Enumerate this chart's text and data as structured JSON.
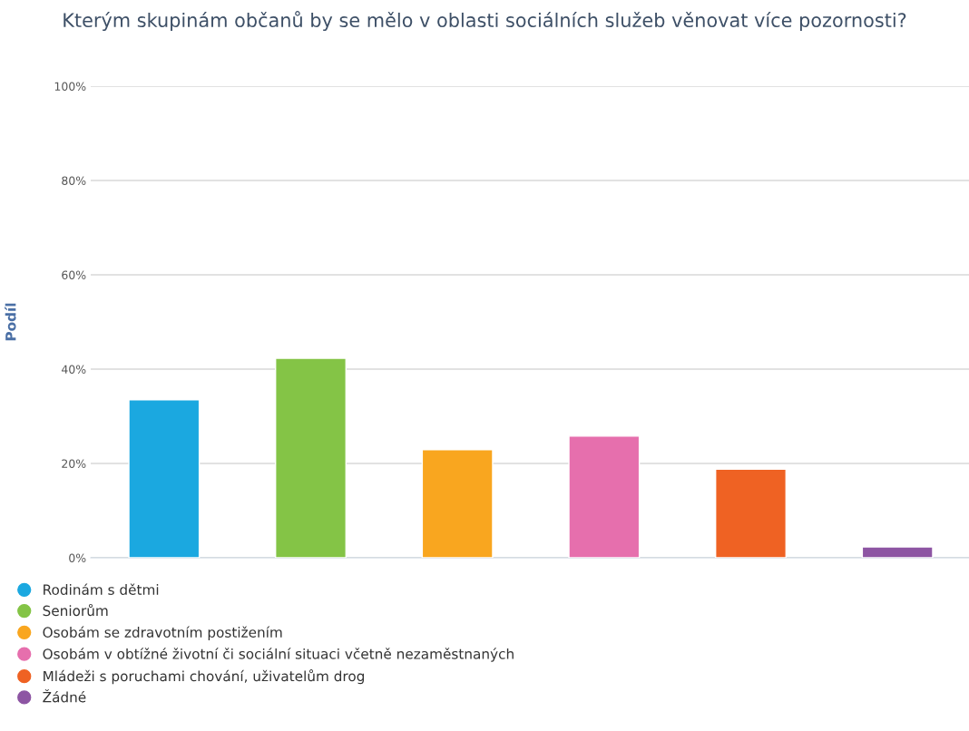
{
  "chart_data": {
    "type": "bar",
    "title": "Kterým skupinám občanů by se mělo v oblasti sociálních služeb věnovat více pozornosti?",
    "ylabel": "Podíl",
    "categories": [
      null,
      null,
      null,
      null,
      null,
      null
    ],
    "series": [
      {
        "name": "Rodinám s dětmi",
        "color": "#1ba8e0",
        "values": [
          33.5,
          null,
          null,
          null,
          null,
          null
        ]
      },
      {
        "name": "Seniorům",
        "color": "#84c446",
        "values": [
          null,
          42.3,
          null,
          null,
          null,
          null
        ]
      },
      {
        "name": "Osobám se zdravotním postižením",
        "color": "#f9a61f",
        "values": [
          null,
          null,
          22.9,
          null,
          null,
          null
        ]
      },
      {
        "name": "Osobám v obtížné životní či sociální situaci včetně nezaměstnaných",
        "color": "#e66fad",
        "values": [
          null,
          null,
          null,
          25.8,
          null,
          null
        ]
      },
      {
        "name": "Mládeži s poruchami chování, uživatelům drog",
        "color": "#ef6223",
        "values": [
          null,
          null,
          null,
          null,
          18.8,
          null
        ]
      },
      {
        "name": "Žádné",
        "color": "#8d55a3",
        "values": [
          null,
          null,
          null,
          null,
          null,
          2.3
        ]
      }
    ],
    "ylim": [
      0,
      100
    ],
    "yticks": [
      {
        "value": 0,
        "label": "0%"
      },
      {
        "value": 20,
        "label": "20%"
      },
      {
        "value": 40,
        "label": "40%"
      },
      {
        "value": 60,
        "label": "60%"
      },
      {
        "value": 80,
        "label": "80%"
      },
      {
        "value": 100,
        "label": "100%"
      }
    ],
    "grid": "y",
    "legend": "bottom"
  }
}
